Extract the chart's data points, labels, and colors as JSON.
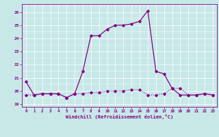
{
  "xlabel": "Windchill (Refroidissement éolien,°C)",
  "background_color": "#c8e8e8",
  "line_color": "#800080",
  "xlim": [
    -0.5,
    23.5
  ],
  "ylim": [
    18.8,
    26.6
  ],
  "yticks": [
    19,
    20,
    21,
    22,
    23,
    24,
    25,
    26
  ],
  "xticks": [
    0,
    1,
    2,
    3,
    4,
    5,
    6,
    7,
    8,
    9,
    10,
    11,
    12,
    13,
    14,
    15,
    16,
    17,
    18,
    19,
    20,
    21,
    22,
    23
  ],
  "hours": [
    0,
    1,
    2,
    3,
    4,
    5,
    6,
    7,
    8,
    9,
    10,
    11,
    12,
    13,
    14,
    15,
    16,
    17,
    18,
    19,
    20,
    21,
    22,
    23
  ],
  "temp": [
    20.7,
    19.7,
    19.8,
    19.8,
    19.8,
    19.5,
    19.8,
    21.5,
    24.2,
    24.2,
    24.7,
    25.0,
    25.0,
    25.1,
    25.3,
    26.1,
    21.5,
    21.3,
    20.2,
    19.7,
    19.7,
    19.7,
    19.8,
    19.7
  ],
  "windchill": [
    19.7,
    19.7,
    19.8,
    19.8,
    19.8,
    19.5,
    19.8,
    19.8,
    19.9,
    19.9,
    20.0,
    20.0,
    20.0,
    20.1,
    20.1,
    19.7,
    19.7,
    19.8,
    20.2,
    20.2,
    19.7,
    19.7,
    19.8,
    19.7
  ]
}
